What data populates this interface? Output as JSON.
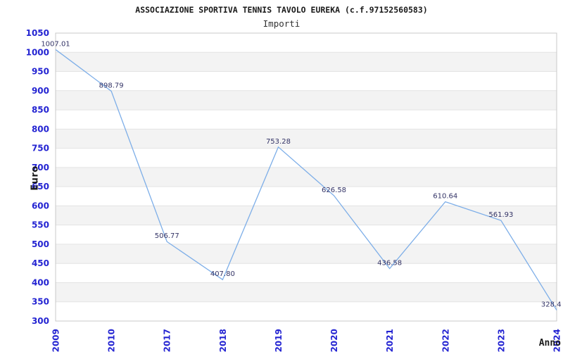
{
  "chart_data": {
    "type": "line",
    "title": "ASSOCIAZIONE SPORTIVA TENNIS TAVOLO EUREKA (c.f.97152560583)",
    "subtitle": "Importi",
    "xlabel": "Anno",
    "ylabel": "Euro",
    "categories": [
      "2009",
      "2010",
      "2017",
      "2018",
      "2019",
      "2020",
      "2021",
      "2022",
      "2023",
      "2024"
    ],
    "series": [
      {
        "name": "Importi",
        "values": [
          1007.01,
          898.79,
          506.77,
          407.8,
          753.28,
          626.58,
          436.58,
          610.64,
          561.93,
          328.4
        ],
        "point_labels": [
          "1007.01",
          "898.79",
          "506.77",
          "407.80",
          "753.28",
          "626.58",
          "436.58",
          "610.64",
          "561.93",
          "328.4"
        ]
      }
    ],
    "ylim": [
      300,
      1050
    ],
    "ytick_step": 50,
    "grid": "alternating-horizontal-bands",
    "legend": "none",
    "colors": {
      "line": "#7daee8",
      "tick_labels": "#2424d2",
      "point_labels": "#333366",
      "band": "#f3f3f3",
      "gridline": "#e3e3e3",
      "plot_border": "#c9c9c9",
      "text": "#1a1a1a"
    }
  }
}
